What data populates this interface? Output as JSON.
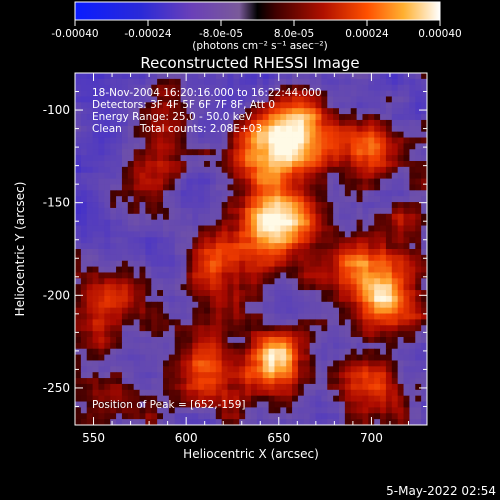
{
  "colorbar": {
    "ticks": [
      "-0.00040",
      "-0.00024",
      "-8.0e-05",
      "8.0e-05",
      "0.00024",
      "0.00040"
    ],
    "range": [
      -0.0004,
      0.0004
    ],
    "unit_label": "(photons cm⁻² s⁻¹ asec⁻²)"
  },
  "chart_data": {
    "type": "heatmap",
    "title": "Reconstructed RHESSI Image",
    "xlabel": "Heliocentric X (arcsec)",
    "ylabel": "Heliocentric Y (arcsec)",
    "xlim": [
      540,
      730
    ],
    "ylim": [
      -270,
      -80
    ],
    "xticks": [
      "550",
      "600",
      "650",
      "700"
    ],
    "yticks": [
      "-100",
      "-150",
      "-200",
      "-250"
    ],
    "xtick_values": [
      550,
      600,
      650,
      700
    ],
    "ytick_values": [
      -100,
      -150,
      -200,
      -250
    ],
    "peak": [
      652,
      -159
    ],
    "blobs": [
      {
        "x": 652,
        "y": -160,
        "v": 1.0
      },
      {
        "x": 660,
        "y": -110,
        "v": 0.8
      },
      {
        "x": 640,
        "y": -125,
        "v": 0.6
      },
      {
        "x": 700,
        "y": -120,
        "v": 0.65
      },
      {
        "x": 710,
        "y": -200,
        "v": 0.7
      },
      {
        "x": 690,
        "y": -185,
        "v": 0.55
      },
      {
        "x": 620,
        "y": -180,
        "v": 0.55
      },
      {
        "x": 650,
        "y": -235,
        "v": 0.75
      },
      {
        "x": 610,
        "y": -245,
        "v": 0.55
      },
      {
        "x": 700,
        "y": -250,
        "v": 0.55
      },
      {
        "x": 560,
        "y": -205,
        "v": 0.55
      },
      {
        "x": 580,
        "y": -135,
        "v": 0.45
      },
      {
        "x": 590,
        "y": -100,
        "v": 0.35
      },
      {
        "x": 560,
        "y": -260,
        "v": 0.35
      },
      {
        "x": 610,
        "y": -215,
        "v": 0.3
      },
      {
        "x": 725,
        "y": -160,
        "v": 0.35
      }
    ]
  },
  "annotations": {
    "time_range": "18-Nov-2004 16:20:16.000 to 16:22:44.000",
    "detectors": "Detectors: 3F 4F 5F 6F 7F 8F, Att 0",
    "energy": "Energy Range: 25.0 - 50.0 keV",
    "method": "Clean",
    "counts": "Total counts: 2.08E+03",
    "peak_text": "Position of Peak = [652,-159]"
  },
  "footer": {
    "timestamp": "5-May-2022 02:54"
  }
}
